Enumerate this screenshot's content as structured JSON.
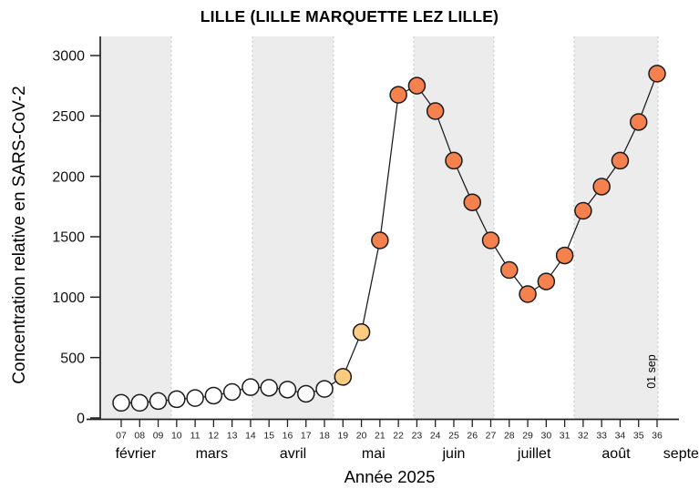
{
  "chart_data": {
    "type": "line",
    "title": "LILLE (LILLE MARQUETTE LEZ LILLE)",
    "xlabel": "Année 2025",
    "ylabel": "Concentration relative en SARS-CoV-2",
    "x_unit": "week-of-year",
    "ylim": [
      0,
      3100
    ],
    "yticks": [
      0,
      500,
      1000,
      1500,
      2000,
      2500,
      3000
    ],
    "grid": false,
    "legend": false,
    "weeks": [
      "07",
      "08",
      "09",
      "10",
      "11",
      "12",
      "13",
      "14",
      "15",
      "16",
      "17",
      "18",
      "19",
      "20",
      "21",
      "22",
      "23",
      "24",
      "25",
      "26",
      "27",
      "28",
      "29",
      "30",
      "31",
      "32",
      "33",
      "34",
      "35",
      "36"
    ],
    "values": [
      125,
      125,
      140,
      155,
      165,
      185,
      215,
      255,
      250,
      235,
      200,
      240,
      340,
      710,
      1470,
      2675,
      2750,
      2540,
      2130,
      1785,
      1470,
      1225,
      1025,
      1130,
      1345,
      1715,
      1915,
      2130,
      2450,
      2850
    ],
    "point_colors": [
      "white",
      "white",
      "white",
      "white",
      "white",
      "white",
      "white",
      "white",
      "white",
      "white",
      "white",
      "white",
      "peach",
      "peach",
      "orange",
      "orange",
      "orange",
      "orange",
      "orange",
      "orange",
      "orange",
      "orange",
      "orange",
      "orange",
      "orange",
      "orange",
      "orange",
      "orange",
      "orange",
      "orange"
    ],
    "palette": {
      "white": "#ffffff",
      "peach": "#fbcc80",
      "orange": "#f5824e",
      "point_stroke": "#1a1a1a",
      "line": "#1a1a1a",
      "band": "#ececec",
      "boundary": "#cdcdcd",
      "axis": "#222222",
      "tick_label": "#111111",
      "week_label": "#222222"
    },
    "months": [
      {
        "label": "février",
        "start_week": 5.85,
        "end_week": 9.71,
        "shaded": true,
        "label_week": 7.78
      },
      {
        "label": "mars",
        "start_week": 9.71,
        "end_week": 14.1,
        "shaded": false,
        "label_week": 11.9
      },
      {
        "label": "avril",
        "start_week": 14.1,
        "end_week": 18.49,
        "shaded": true,
        "label_week": 16.3
      },
      {
        "label": "mai",
        "start_week": 18.49,
        "end_week": 22.83,
        "shaded": false,
        "label_week": 20.65
      },
      {
        "label": "juin",
        "start_week": 22.83,
        "end_week": 27.17,
        "shaded": true,
        "label_week": 25.0
      },
      {
        "label": "juillet",
        "start_week": 27.17,
        "end_week": 31.51,
        "shaded": false,
        "label_week": 29.35
      },
      {
        "label": "août",
        "start_week": 31.51,
        "end_week": 36.05,
        "shaded": true,
        "label_week": 33.78
      },
      {
        "label": "septembre",
        "start_week": 36.05,
        "end_week": 37.2,
        "shaded": false,
        "label_week": 38.2
      }
    ],
    "annotation": {
      "text": "01 sep",
      "week": 36.05
    }
  }
}
